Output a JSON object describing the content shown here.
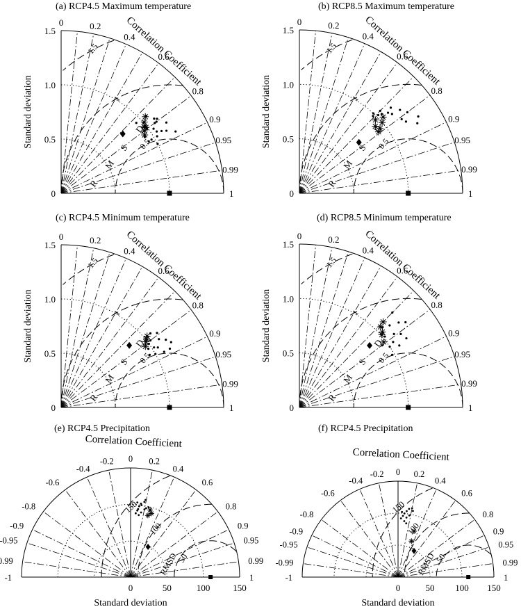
{
  "figure": {
    "common_labels": {
      "ylabel": "Standard deviation",
      "xlabel": "Standard deviation",
      "cc_label": "Correlation Coefficient",
      "rmsd_letters": [
        "R",
        "M",
        "S",
        "D"
      ],
      "rmsd_label": "RMSD"
    }
  },
  "chart_data": [
    {
      "type": "scatter",
      "subtype": "taylor-diagram-quarter",
      "title": "(a) RCP4.5 Maximum temperature",
      "ylabel": "Standard deviation",
      "ref_std": 1.0,
      "std_ticks": [
        "0",
        "0.5",
        "1.0",
        "1.5"
      ],
      "rim_labels": [
        "1"
      ],
      "cc_ticks": [
        "0",
        "0.2",
        "0.4",
        "0.6",
        "0.8",
        "0.9",
        "0.95",
        "0.99"
      ],
      "rmsd_labels": [
        "0.5",
        "1",
        "1.5"
      ],
      "reference_point": {
        "std": 1.0,
        "cc": 1.0
      },
      "points_dot": [
        [
          0.97,
          0.86
        ],
        [
          1.03,
          0.86
        ],
        [
          1.05,
          0.84
        ],
        [
          1.0,
          0.78
        ],
        [
          1.08,
          0.8
        ],
        [
          0.93,
          0.83
        ],
        [
          0.94,
          0.86
        ],
        [
          1.1,
          0.78
        ],
        [
          1.0,
          0.89
        ],
        [
          1.13,
          0.86
        ],
        [
          1.04,
          0.82
        ],
        [
          0.99,
          0.8
        ],
        [
          1.2,
          0.88
        ],
        [
          1.09,
          0.85
        ],
        [
          0.95,
          0.73
        ],
        [
          1.17,
          0.83
        ],
        [
          1.06,
          0.74
        ],
        [
          1.0,
          0.76
        ],
        [
          1.1,
          0.8
        ],
        [
          1.12,
          0.79
        ]
      ],
      "points_star": [
        [
          0.94,
          0.82
        ],
        [
          0.96,
          0.8
        ],
        [
          0.98,
          0.78
        ],
        [
          1.01,
          0.76
        ],
        [
          1.05,
          0.74
        ],
        [
          0.99,
          0.79
        ]
      ],
      "points_diamond": [
        [
          0.79,
          0.72
        ]
      ]
    },
    {
      "type": "scatter",
      "subtype": "taylor-diagram-quarter",
      "title": "(b) RCP8.5 Maximum temperature",
      "ylabel": "Standard deviation",
      "ref_std": 1.0,
      "std_ticks": [
        "0",
        "0.5",
        "1.0",
        "1.5"
      ],
      "rim_labels": [
        "1"
      ],
      "cc_ticks": [
        "0",
        "0.2",
        "0.4",
        "0.6",
        "0.8",
        "0.9",
        "0.95",
        "0.99"
      ],
      "rmsd_labels": [
        "0.5",
        "1",
        "1.5"
      ],
      "reference_point": {
        "std": 1.0,
        "cc": 1.0
      },
      "points_dot": [
        [
          1.2,
          0.77
        ],
        [
          1.24,
          0.8
        ],
        [
          1.15,
          0.73
        ],
        [
          1.3,
          0.84
        ],
        [
          1.05,
          0.72
        ],
        [
          1.1,
          0.74
        ],
        [
          1.02,
          0.71
        ],
        [
          1.18,
          0.83
        ],
        [
          1.12,
          0.76
        ],
        [
          0.98,
          0.69
        ],
        [
          1.06,
          0.7
        ],
        [
          1.26,
          0.86
        ],
        [
          1.0,
          0.68
        ],
        [
          1.16,
          0.81
        ]
      ],
      "points_star": [
        [
          0.93,
          0.75
        ],
        [
          0.95,
          0.78
        ],
        [
          0.97,
          0.72
        ],
        [
          1.0,
          0.76
        ],
        [
          0.92,
          0.79
        ],
        [
          1.04,
          0.74
        ]
      ],
      "points_diamond": [
        [
          0.72,
          0.76
        ]
      ]
    },
    {
      "type": "scatter",
      "subtype": "taylor-diagram-quarter",
      "title": "(c) RCP4.5 Minimum temperature",
      "ylabel": "Standard deviation",
      "ref_std": 1.0,
      "std_ticks": [
        "0",
        "0.5",
        "1.0",
        "1.5"
      ],
      "rim_labels": [
        "1"
      ],
      "cc_ticks": [
        "0",
        "0.2",
        "0.4",
        "0.6",
        "0.8",
        "0.9",
        "0.95",
        "0.99"
      ],
      "rmsd_labels": [
        "0.5",
        "1",
        "1.5"
      ],
      "reference_point": {
        "std": 1.0,
        "cc": 1.0
      },
      "points_dot": [
        [
          1.0,
          0.87
        ],
        [
          1.05,
          0.85
        ],
        [
          1.1,
          0.82
        ],
        [
          1.15,
          0.84
        ],
        [
          1.08,
          0.88
        ],
        [
          0.97,
          0.83
        ],
        [
          1.03,
          0.8
        ],
        [
          1.12,
          0.79
        ],
        [
          0.95,
          0.86
        ],
        [
          1.18,
          0.86
        ],
        [
          1.07,
          0.77
        ],
        [
          1.0,
          0.81
        ],
        [
          1.14,
          0.88
        ],
        [
          1.02,
          0.84
        ]
      ],
      "points_star": [
        [
          0.96,
          0.81
        ],
        [
          0.99,
          0.79
        ],
        [
          1.01,
          0.78
        ],
        [
          1.03,
          0.77
        ]
      ],
      "points_diamond": [
        [
          0.85,
          0.74
        ]
      ]
    },
    {
      "type": "scatter",
      "subtype": "taylor-diagram-quarter",
      "title": "(d) RCP8.5 Minimum temperature",
      "ylabel": "Standard deviation",
      "ref_std": 1.0,
      "std_ticks": [
        "0",
        "0.5",
        "1.0",
        "1.5"
      ],
      "rim_labels": [
        "1"
      ],
      "cc_ticks": [
        "0",
        "0.2",
        "0.4",
        "0.6",
        "0.8",
        "0.9",
        "0.95",
        "0.99"
      ],
      "rmsd_labels": [
        "0.5",
        "1",
        "1.5"
      ],
      "reference_point": {
        "std": 1.0,
        "cc": 1.0
      },
      "points_dot": [
        [
          1.0,
          0.83
        ],
        [
          1.05,
          0.82
        ],
        [
          1.1,
          0.79
        ],
        [
          1.15,
          0.81
        ],
        [
          1.08,
          0.85
        ],
        [
          0.95,
          0.8
        ],
        [
          1.2,
          0.76
        ],
        [
          1.02,
          0.77
        ],
        [
          1.12,
          0.74
        ],
        [
          0.98,
          0.87
        ],
        [
          1.25,
          0.78
        ],
        [
          1.06,
          0.72
        ],
        [
          1.17,
          0.84
        ],
        [
          1.22,
          0.7
        ]
      ],
      "points_star": [
        [
          0.98,
          0.79
        ],
        [
          1.01,
          0.75
        ],
        [
          1.03,
          0.74
        ],
        [
          1.05,
          0.71
        ],
        [
          1.1,
          0.7
        ]
      ],
      "points_diamond": [
        [
          0.86,
          0.75
        ]
      ]
    },
    {
      "type": "scatter",
      "subtype": "taylor-diagram-half",
      "title": "(e) RCP4.5 Precipitation",
      "xlabel": "Standard deviation",
      "ref_std": 110,
      "x_ticks": [
        "0",
        "50",
        "100",
        "150"
      ],
      "cc_ticks": [
        "-1",
        "-0.99",
        "-0.95",
        "-0.9",
        "-0.8",
        "-0.6",
        "-0.4",
        "-0.2",
        "0",
        "0.2",
        "0.4",
        "0.6",
        "0.8",
        "0.9",
        "0.95",
        "0.99",
        "1"
      ],
      "rmsd_labels": [
        "50",
        "100",
        "150"
      ],
      "reference_point": {
        "std": 110,
        "cc": 1.0
      },
      "points_dot": [
        [
          98,
          0.12
        ],
        [
          100,
          0.15
        ],
        [
          92,
          0.1
        ],
        [
          105,
          0.18
        ],
        [
          95,
          0.2
        ],
        [
          88,
          0.08
        ],
        [
          102,
          0.14
        ],
        [
          97,
          0.22
        ],
        [
          90,
          0.16
        ],
        [
          108,
          0.19
        ],
        [
          94,
          0.11
        ],
        [
          99,
          0.25
        ],
        [
          86,
          0.13
        ],
        [
          103,
          0.09
        ]
      ],
      "points_star": [
        [
          96,
          0.28
        ],
        [
          92,
          0.31
        ],
        [
          88,
          0.27
        ]
      ],
      "points_diamond": [
        [
          48,
          0.5
        ]
      ]
    },
    {
      "type": "scatter",
      "subtype": "taylor-diagram-half",
      "title": "(f) RCP4.5 Precipitation",
      "xlabel": "Standard deviation",
      "ref_std": 110,
      "x_ticks": [
        "0",
        "50",
        "100",
        "150"
      ],
      "cc_ticks": [
        "-1",
        "-0.99",
        "-0.95",
        "-0.9",
        "-0.8",
        "-0.6",
        "-0.4",
        "-0.2",
        "0",
        "0.2",
        "0.4",
        "0.6",
        "0.8",
        "0.9",
        "0.95",
        "0.99",
        "1"
      ],
      "rmsd_labels": [
        "50",
        "100",
        "150"
      ],
      "reference_point": {
        "std": 110,
        "cc": 1.0
      },
      "points_dot": [
        [
          100,
          0.1
        ],
        [
          104,
          0.13
        ],
        [
          96,
          0.08
        ],
        [
          108,
          0.16
        ],
        [
          92,
          0.05
        ],
        [
          110,
          0.2
        ],
        [
          98,
          0.18
        ],
        [
          88,
          0.11
        ],
        [
          106,
          0.22
        ],
        [
          94,
          0.14
        ],
        [
          102,
          0.06
        ],
        [
          85,
          0.15
        ]
      ],
      "points_star": [
        [
          76,
          0.33
        ],
        [
          60,
          0.35
        ]
      ],
      "points_diamond": [
        [
          48,
          0.52
        ]
      ]
    }
  ]
}
